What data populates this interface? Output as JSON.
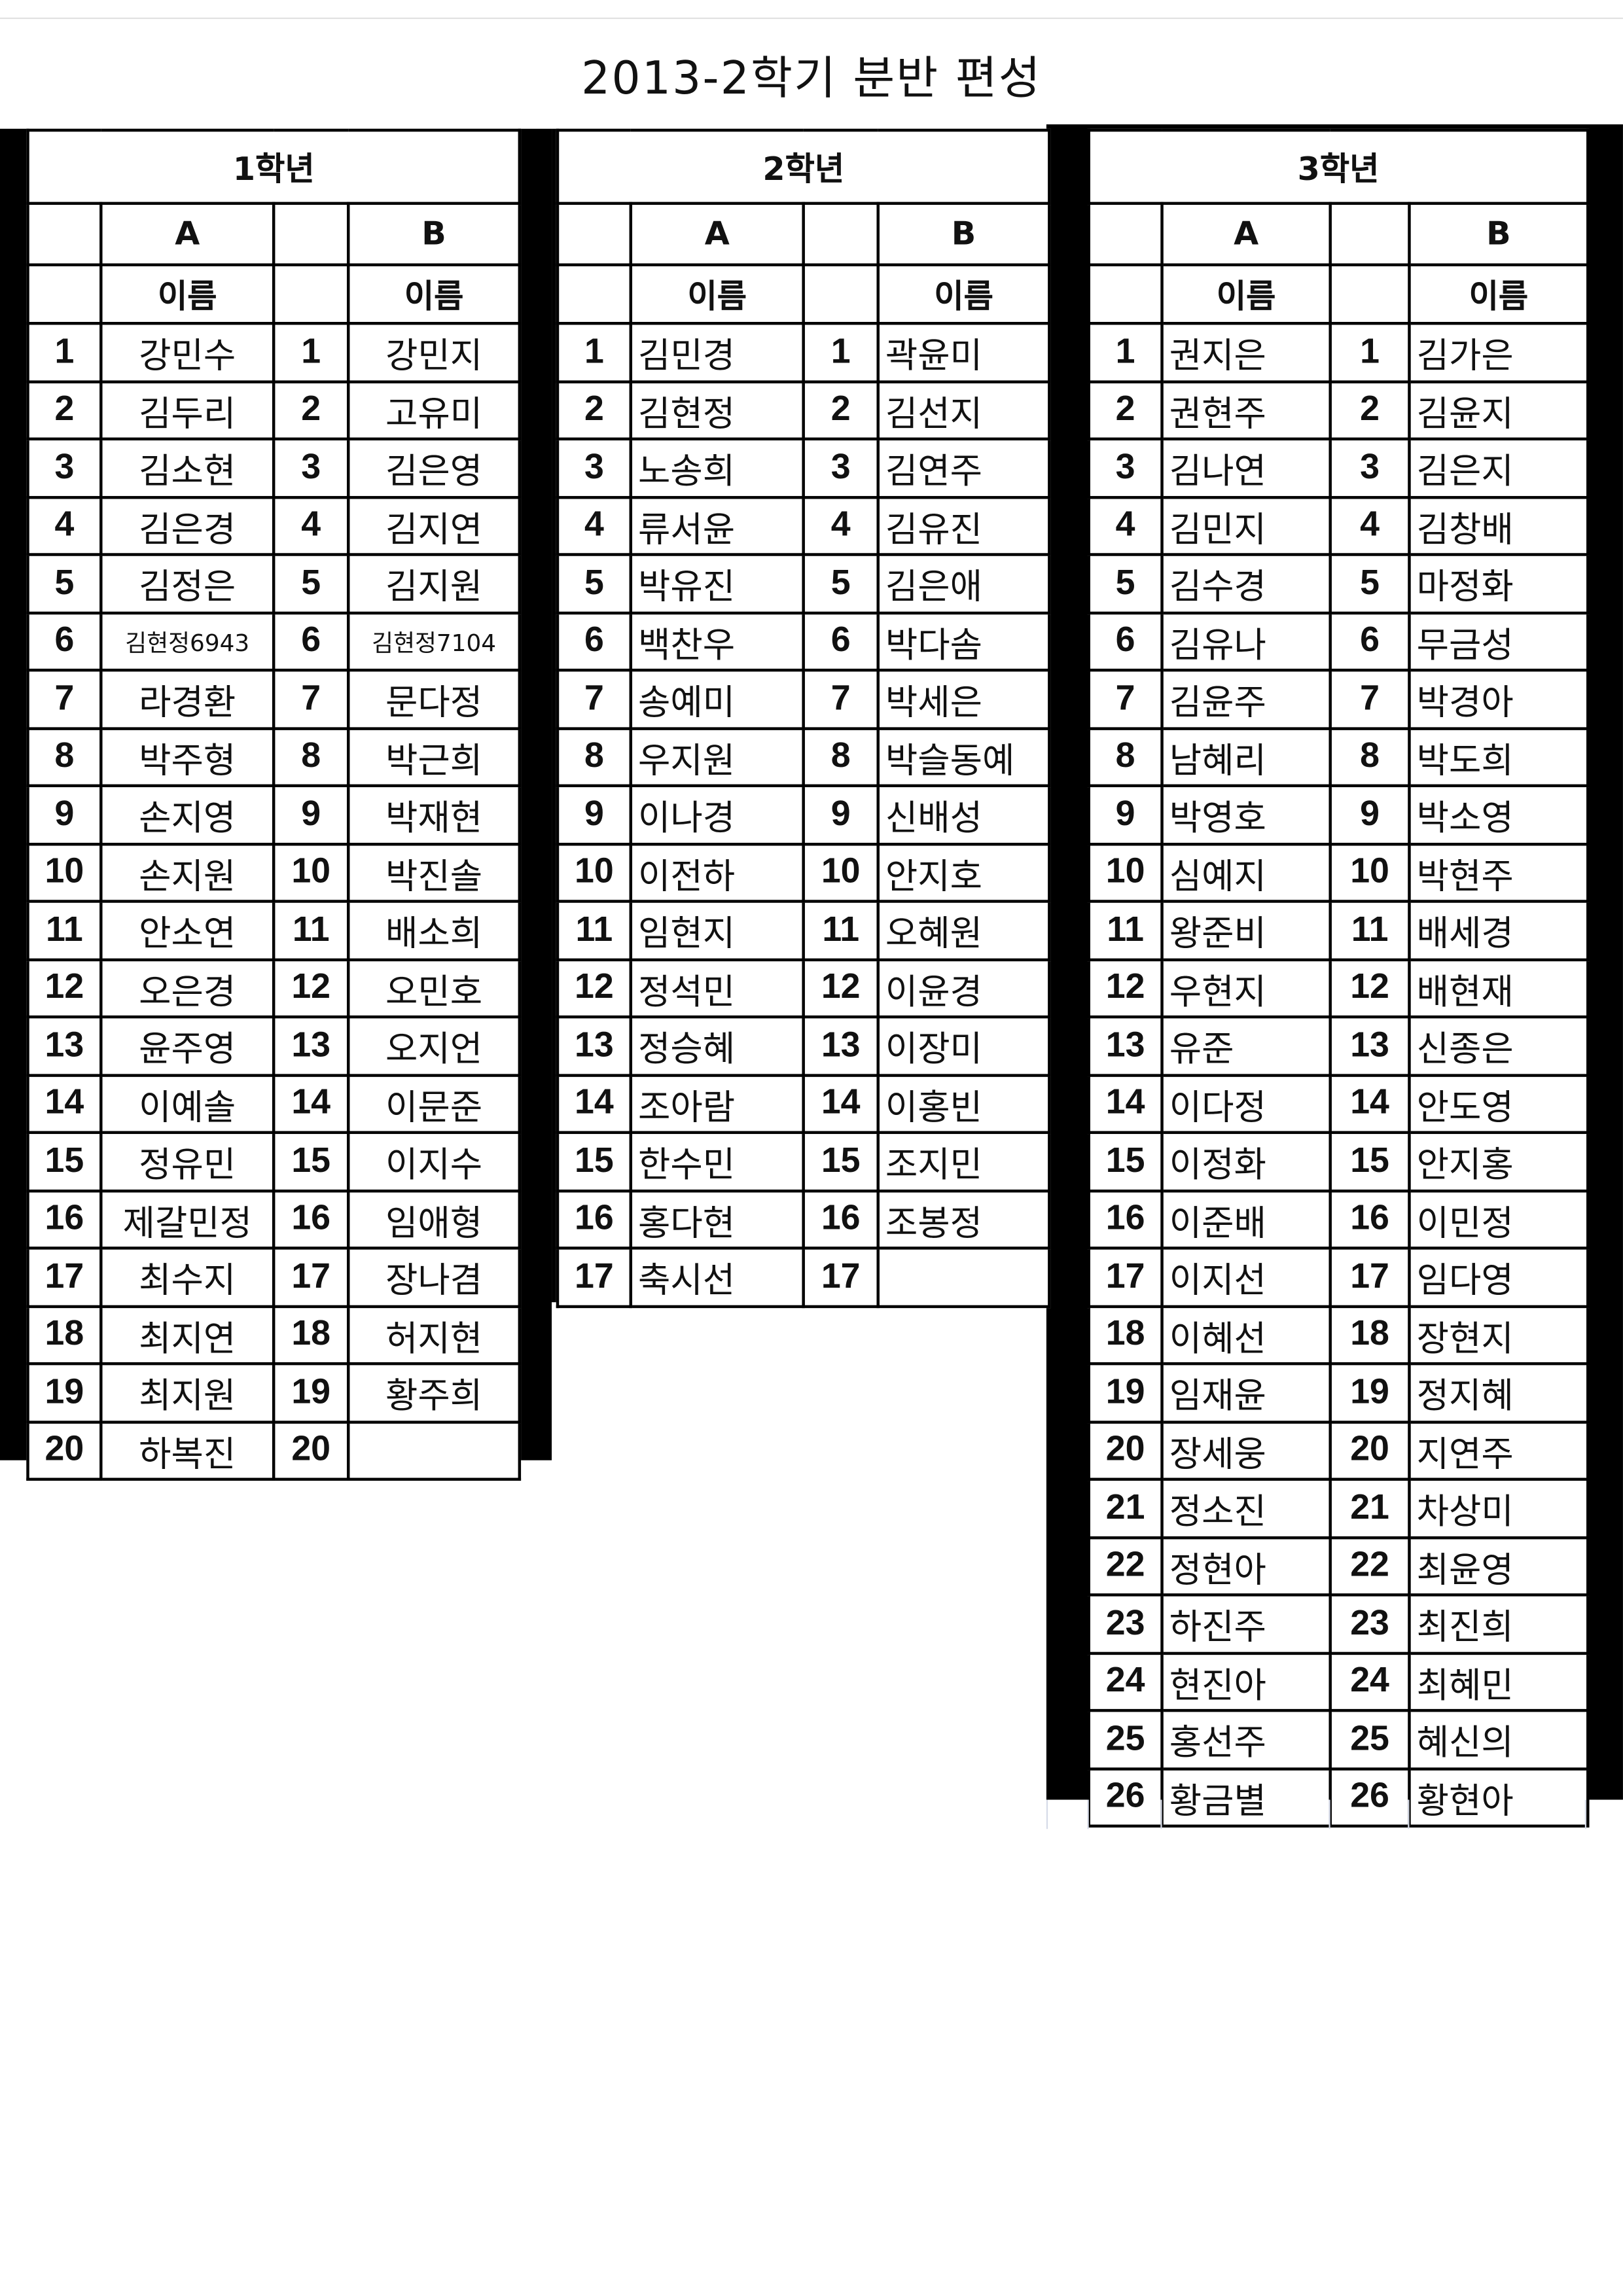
{
  "title": "2013-2학기 분반 편성",
  "grades": [
    {
      "label": "1학년",
      "class_a": "A",
      "class_b": "B",
      "name_header": "이름",
      "rows_a": [
        "강민수",
        "김두리",
        "김소현",
        "김은경",
        "김정은",
        "김현정6943",
        "라경환",
        "박주형",
        "손지영",
        "손지원",
        "안소연",
        "오은경",
        "윤주영",
        "이예솔",
        "정유민",
        "제갈민정",
        "최수지",
        "최지연",
        "최지원",
        "하복진"
      ],
      "rows_b": [
        "강민지",
        "고유미",
        "김은영",
        "김지연",
        "김지원",
        "김현정7104",
        "문다정",
        "박근희",
        "박재현",
        "박진솔",
        "배소희",
        "오민호",
        "오지언",
        "이문준",
        "이지수",
        "임애형",
        "장나겸",
        "허지현",
        "황주희",
        ""
      ]
    },
    {
      "label": "2학년",
      "class_a": "A",
      "class_b": "B",
      "name_header": "이름",
      "rows_a": [
        "김민경",
        "김현정",
        "노송희",
        "류서윤",
        "박유진",
        "백찬우",
        "송예미",
        "우지원",
        "이나경",
        "이전하",
        "임현지",
        "정석민",
        "정승혜",
        "조아람",
        "한수민",
        "홍다현",
        "축시선"
      ],
      "rows_b": [
        "곽윤미",
        "김선지",
        "김연주",
        "김유진",
        "김은애",
        "박다솜",
        "박세은",
        "박슬동예",
        "신배성",
        "안지호",
        "오혜원",
        "이윤경",
        "이장미",
        "이홍빈",
        "조지민",
        "조봉정",
        ""
      ]
    },
    {
      "label": "3학년",
      "class_a": "A",
      "class_b": "B",
      "name_header": "이름",
      "rows_a": [
        "권지은",
        "권현주",
        "김나연",
        "김민지",
        "김수경",
        "김유나",
        "김윤주",
        "남혜리",
        "박영호",
        "심예지",
        "왕준비",
        "우현지",
        "유준",
        "이다정",
        "이정화",
        "이준배",
        "이지선",
        "이혜선",
        "임재윤",
        "장세웅",
        "정소진",
        "정현아",
        "하진주",
        "현진아",
        "홍선주",
        "황금별"
      ],
      "rows_b": [
        "김가은",
        "김윤지",
        "김은지",
        "김창배",
        "마정화",
        "무금성",
        "박경아",
        "박도희",
        "박소영",
        "박현주",
        "배세경",
        "배현재",
        "신종은",
        "안도영",
        "안지홍",
        "이민정",
        "임다영",
        "장현지",
        "정지혜",
        "지연주",
        "차상미",
        "최윤영",
        "최진희",
        "최혜민",
        "혜신의",
        "황현아"
      ]
    }
  ]
}
